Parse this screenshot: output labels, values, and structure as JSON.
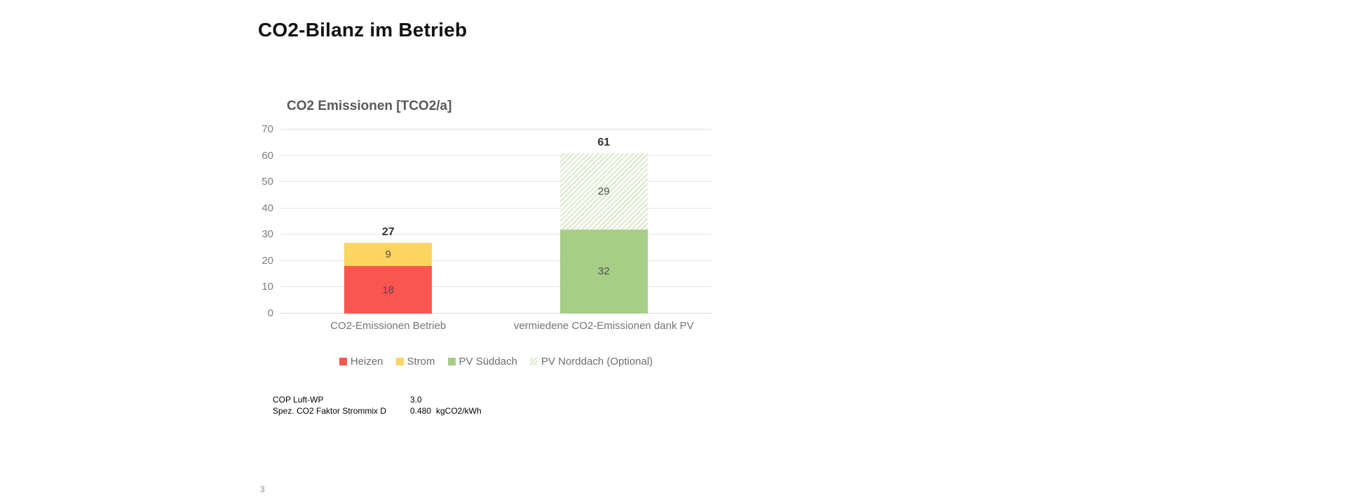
{
  "page": {
    "title": "CO2-Bilanz im Betrieb",
    "page_number": "3"
  },
  "chart_data": {
    "type": "bar",
    "stacked": true,
    "title": "CO2 Emissionen [TCO2/a]",
    "categories": [
      "CO2-Emissionen Betrieb",
      "vermiedene CO2-Emissionen dank PV"
    ],
    "series": [
      {
        "name": "Heizen",
        "values": [
          18,
          null
        ],
        "color": "#fb5551",
        "pattern": "solid"
      },
      {
        "name": "Strom",
        "values": [
          9,
          null
        ],
        "color": "#fcd460",
        "pattern": "solid"
      },
      {
        "name": "PV Süddach",
        "values": [
          null,
          32
        ],
        "color": "#a7ce87",
        "pattern": "solid"
      },
      {
        "name": "PV Norddach (Optional)",
        "values": [
          null,
          29
        ],
        "color": "#dce9cc",
        "pattern": "hatch",
        "hatch_bg": "#fdfdfa"
      }
    ],
    "totals": [
      27,
      61
    ],
    "ylim": [
      0,
      70
    ],
    "ytick_step": 10,
    "grid": true,
    "legend_position": "bottom",
    "colors": {
      "gridline": "#e3e3e3",
      "axis_text": "#7f7f7f",
      "category_text": "#757575",
      "segment_label_text": "#4d4d4d",
      "total_label_text": "#333333",
      "chart_title_text": "#595959"
    }
  },
  "info_table": {
    "rows": [
      {
        "label": "COP Luft-WP",
        "value": "3.0",
        "unit": ""
      },
      {
        "label": "Spez. CO2 Faktor Strommix D",
        "value": "0.480",
        "unit": "kgCO2/kWh"
      }
    ]
  }
}
